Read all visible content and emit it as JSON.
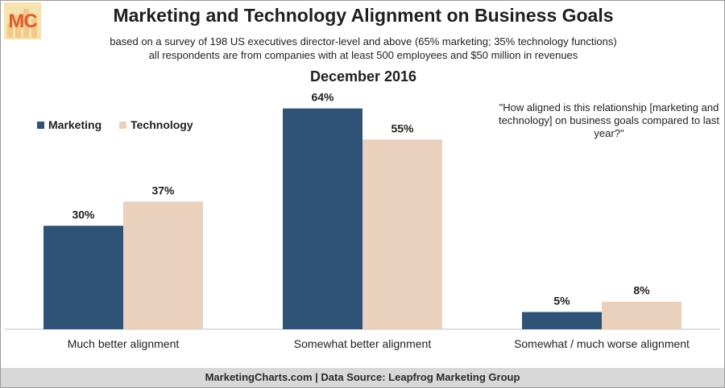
{
  "logo": {
    "text": "MC",
    "icon": "marketingcharts-logo"
  },
  "title": "Marketing and Technology Alignment on Business Goals",
  "subtitle_1": "based on a survey of 198 US executives director-level and above (65% marketing; 35% technology functions)",
  "subtitle_2": "all respondents are from companies with at least 500 employees and $50 million in revenues",
  "date": "December 2016",
  "question": "\"How aligned is this relationship [marketing and technology] on business goals compared to last year?\"",
  "footer": "MarketingCharts.com | Data Source: Leapfrog Marketing Group",
  "colors": {
    "marketing": "#2e5377",
    "technology": "#ead1be"
  },
  "chart_data": {
    "type": "bar",
    "title": "Marketing and Technology Alignment on Business Goals",
    "categories": [
      "Much better alignment",
      "Somewhat better alignment",
      "Somewhat / much worse alignment"
    ],
    "series": [
      {
        "name": "Marketing",
        "values": [
          30,
          64,
          5
        ],
        "labels": [
          "30%",
          "64%",
          "5%"
        ]
      },
      {
        "name": "Technology",
        "values": [
          37,
          55,
          8
        ],
        "labels": [
          "37%",
          "55%",
          "8%"
        ]
      }
    ],
    "unit": "%",
    "ylim": [
      0,
      70
    ],
    "grid": false,
    "legend_position": "top-left"
  }
}
